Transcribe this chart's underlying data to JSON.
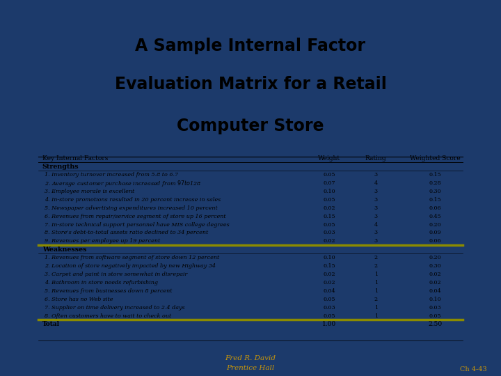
{
  "title_line1": "A Sample Internal Factor",
  "title_line2": "Evaluation Matrix for a Retail",
  "title_line3": "Computer Store",
  "title_bg": "#d3d3d3",
  "outer_bg": "#1c3a6b",
  "table_bg": "#ffffff",
  "footer_text1": "Fred R. David",
  "footer_text2": "Prentice Hall",
  "chapter_ref": "Ch 4-43",
  "columns": [
    "Key Internal Factors",
    "Weight",
    "Rating",
    "Weighted Score"
  ],
  "strengths_header": "Strengths",
  "weaknesses_header": "Weaknesses",
  "total_label": "Total",
  "total_weight": "1.00",
  "total_score": "2.50",
  "separator_color": "#8B8B00",
  "strengths": [
    {
      "factor": "1. Inventory turnover increased from 5.8 to 6.7",
      "weight": "0.05",
      "rating": "3",
      "score": "0.15"
    },
    {
      "factor": "2. Average customer purchase increased from $97 to $128",
      "weight": "0.07",
      "rating": "4",
      "score": "0.28"
    },
    {
      "factor": "3. Employee morale is excellent",
      "weight": "0.10",
      "rating": "3",
      "score": "0.30"
    },
    {
      "factor": "4. In-store promotions resulted in 20 percent increase in sales",
      "weight": "0.05",
      "rating": "3",
      "score": "0.15"
    },
    {
      "factor": "5. Newspaper advertising expenditures increased 10 percent",
      "weight": "0.02",
      "rating": "3",
      "score": "0.06"
    },
    {
      "factor": "6. Revenues from repair/service segment of store up 16 percent",
      "weight": "0.15",
      "rating": "3",
      "score": "0.45"
    },
    {
      "factor": "7. In-store technical support personnel have MIS college degrees",
      "weight": "0.05",
      "rating": "4",
      "score": "0.20"
    },
    {
      "factor": "8. Store's debt-to-total assets ratio declined to 34 percent",
      "weight": "0.03",
      "rating": "3",
      "score": "0.09"
    },
    {
      "factor": "9. Revenues per employee up 19 percent",
      "weight": "0.02",
      "rating": "3",
      "score": "0.06"
    }
  ],
  "weaknesses": [
    {
      "factor": "1. Revenues from software segment of store down 12 percent",
      "weight": "0.10",
      "rating": "2",
      "score": "0.20"
    },
    {
      "factor": "2. Location of store negatively impacted by new Highway 34",
      "weight": "0.15",
      "rating": "2",
      "score": "0.30"
    },
    {
      "factor": "3. Carpet and paint in store somewhat in disrepair",
      "weight": "0.02",
      "rating": "1",
      "score": "0.02"
    },
    {
      "factor": "4. Bathroom in store needs refurbishing",
      "weight": "0.02",
      "rating": "1",
      "score": "0.02"
    },
    {
      "factor": "5. Revenues from businesses down 8 percent",
      "weight": "0.04",
      "rating": "1",
      "score": "0.04"
    },
    {
      "factor": "6. Store has no Web site",
      "weight": "0.05",
      "rating": "2",
      "score": "0.10"
    },
    {
      "factor": "7. Supplier on time delivery increased to 2.4 days",
      "weight": "0.03",
      "rating": "1",
      "score": "0.03"
    },
    {
      "factor": "8. Often customers have to wait to check out",
      "weight": "0.05",
      "rating": "1",
      "score": "0.05"
    }
  ]
}
